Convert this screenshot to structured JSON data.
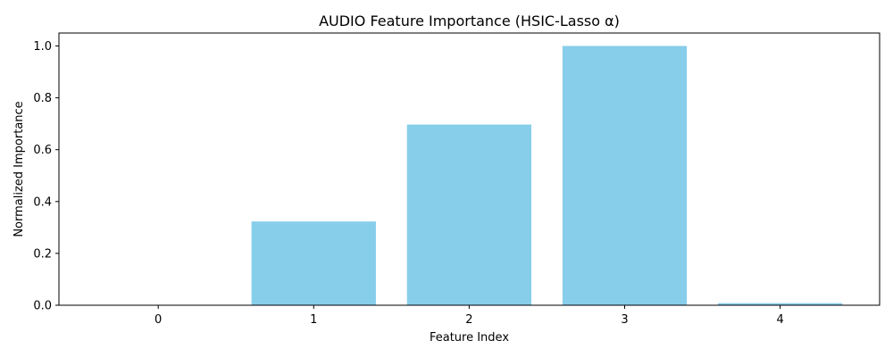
{
  "chart_data": {
    "type": "bar",
    "title": "AUDIO Feature Importance (HSIC-Lasso α)",
    "xlabel": "Feature Index",
    "ylabel": "Normalized Importance",
    "categories": [
      "0",
      "1",
      "2",
      "3",
      "4"
    ],
    "values": [
      0.0,
      0.323,
      0.697,
      1.0,
      0.008
    ],
    "ylim": [
      0,
      1.05
    ],
    "yticks": [
      "0.0",
      "0.2",
      "0.4",
      "0.6",
      "0.8",
      "1.0"
    ],
    "bar_color": "#87CEEB",
    "grid": false,
    "legend": "none"
  }
}
